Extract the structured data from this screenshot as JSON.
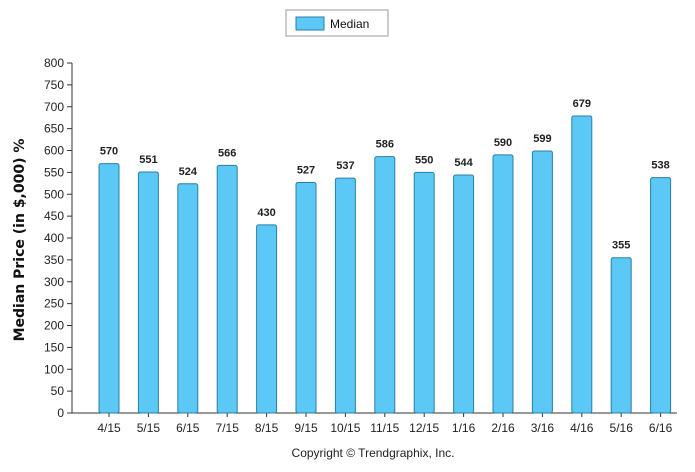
{
  "chart_data": {
    "type": "bar",
    "categories": [
      "4/15",
      "5/15",
      "6/15",
      "7/15",
      "8/15",
      "9/15",
      "10/15",
      "11/15",
      "12/15",
      "1/16",
      "2/16",
      "3/16",
      "4/16",
      "5/16",
      "6/16"
    ],
    "series": [
      {
        "name": "Median",
        "values": [
          570,
          551,
          524,
          566,
          430,
          527,
          537,
          586,
          550,
          544,
          590,
          599,
          679,
          355,
          538
        ]
      }
    ],
    "ylabel": "Median Price (in $,000) %",
    "ylim": [
      0,
      800
    ],
    "yticks": [
      0,
      50,
      100,
      150,
      200,
      250,
      300,
      350,
      400,
      450,
      500,
      550,
      600,
      650,
      700,
      750,
      800
    ],
    "legend_position": "top-center",
    "bar_color": "#5bc8f5",
    "bar_edge_color": "#2a7fa8",
    "grid": false,
    "footer": "Copyright © Trendgraphix, Inc."
  }
}
